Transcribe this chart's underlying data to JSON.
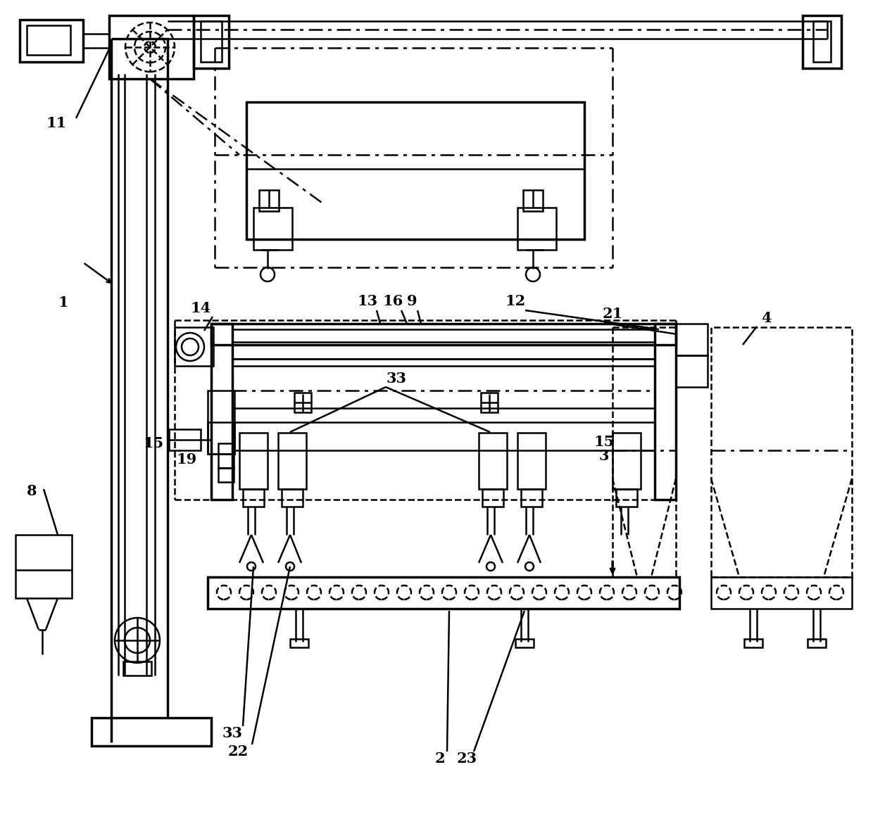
{
  "bg_color": "#ffffff",
  "line_color": "#000000",
  "lw": 1.8,
  "lw_thick": 2.5,
  "figsize": [
    12.4,
    11.71
  ],
  "dpi": 100
}
